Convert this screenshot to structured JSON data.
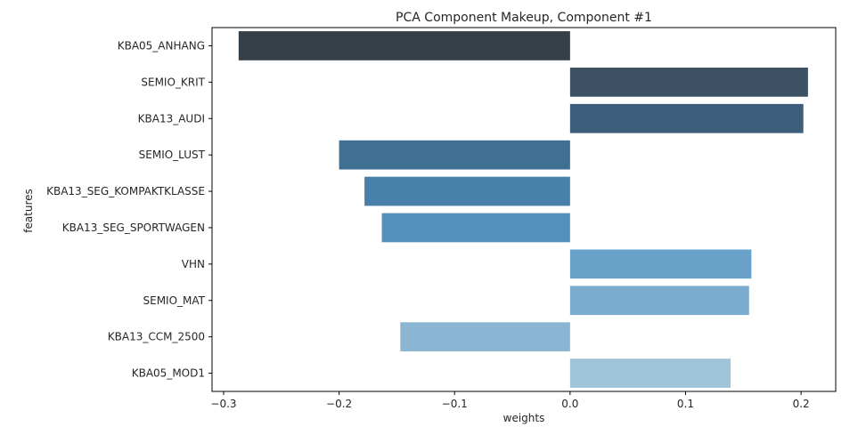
{
  "chart_data": {
    "type": "bar",
    "orientation": "horizontal",
    "title": "PCA Component Makeup, Component #1",
    "xlabel": "weights",
    "ylabel": "features",
    "categories": [
      "KBA05_ANHANG",
      "SEMIO_KRIT",
      "KBA13_AUDI",
      "SEMIO_LUST",
      "KBA13_SEG_KOMPAKTKLASSE",
      "KBA13_SEG_SPORTWAGEN",
      "VHN",
      "SEMIO_MAT",
      "KBA13_CCM_2500",
      "KBA05_MOD1"
    ],
    "values": [
      -0.287,
      0.206,
      0.202,
      -0.2,
      -0.178,
      -0.163,
      0.157,
      0.155,
      -0.147,
      0.139
    ],
    "colors": [
      "#343f48",
      "#3c5264",
      "#3d5e7a",
      "#3f6f93",
      "#4880aa",
      "#5390bb",
      "#6aa1c8",
      "#7aaccf",
      "#8bb6d3",
      "#9fc4da"
    ],
    "xlim": [
      -0.31,
      0.23
    ],
    "xticks": [
      -0.3,
      -0.2,
      -0.1,
      0.0,
      0.1,
      0.2
    ],
    "xtick_labels": [
      "−0.3",
      "−0.2",
      "−0.1",
      "0.0",
      "0.1",
      "0.2"
    ],
    "grid": false,
    "legend": "none"
  }
}
